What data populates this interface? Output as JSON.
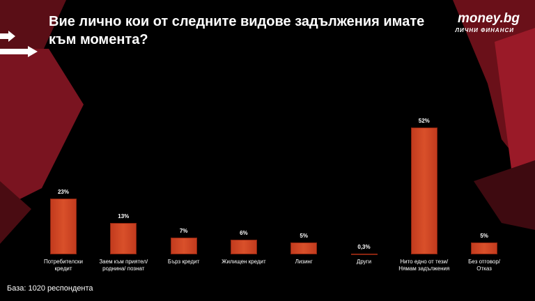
{
  "chart_data": {
    "type": "bar",
    "title": "Вие лично кои от следните видове задължения имате към момента?",
    "categories": [
      "Потребителски\nкредит",
      "Заем към приятел/\nроднина/ познат",
      "Бърз кредит",
      "Жилищен кредит",
      "Лизинг",
      "Други",
      "Нито едно от тези/\nНямам задължения",
      "Без отговор/\nОтказ"
    ],
    "values": [
      23,
      13,
      7,
      6,
      5,
      0.3,
      52,
      5
    ],
    "value_labels": [
      "23%",
      "13%",
      "7%",
      "6%",
      "5%",
      "0,3%",
      "52%",
      "5%"
    ],
    "color": "#c23b1e",
    "note": "База:  1020 респондента"
  },
  "logo": {
    "name": "money.bg",
    "tagline": "ЛИЧНИ ФИНАНСИ"
  }
}
